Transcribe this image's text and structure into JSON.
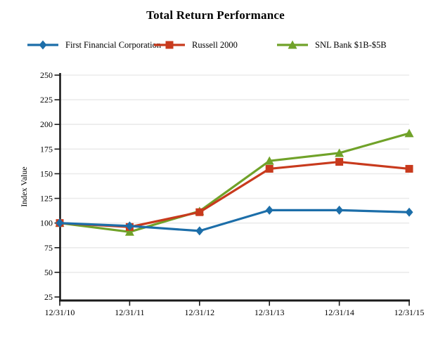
{
  "page_title": "Total Return Performance",
  "chart_data": {
    "type": "line",
    "title": "Total Return Performance",
    "xlabel": "",
    "ylabel": "Index Value",
    "x": [
      "12/31/10",
      "12/31/11",
      "12/31/12",
      "12/31/13",
      "12/31/14",
      "12/31/15"
    ],
    "ylim": [
      25,
      250
    ],
    "yticks": [
      25,
      50,
      75,
      100,
      125,
      150,
      175,
      200,
      225,
      250
    ],
    "grid": "horizontal-gridlines-on",
    "legend_position": "top",
    "series": [
      {
        "name": "First Financial Corporation",
        "color": "#1c6ea9",
        "marker": "diamond",
        "values": [
          100,
          97,
          92,
          113,
          113,
          111
        ]
      },
      {
        "name": "Russell 2000",
        "color": "#c83a1d",
        "marker": "square",
        "values": [
          100,
          96,
          111,
          155,
          162,
          155
        ]
      },
      {
        "name": "SNL Bank $1B-$5B",
        "color": "#70a229",
        "marker": "triangle",
        "values": [
          100,
          91,
          112,
          163,
          171,
          191
        ]
      }
    ],
    "colors": {
      "axis": "#1a1a1a",
      "grid": "#ebebeb",
      "text": "#000000"
    }
  }
}
